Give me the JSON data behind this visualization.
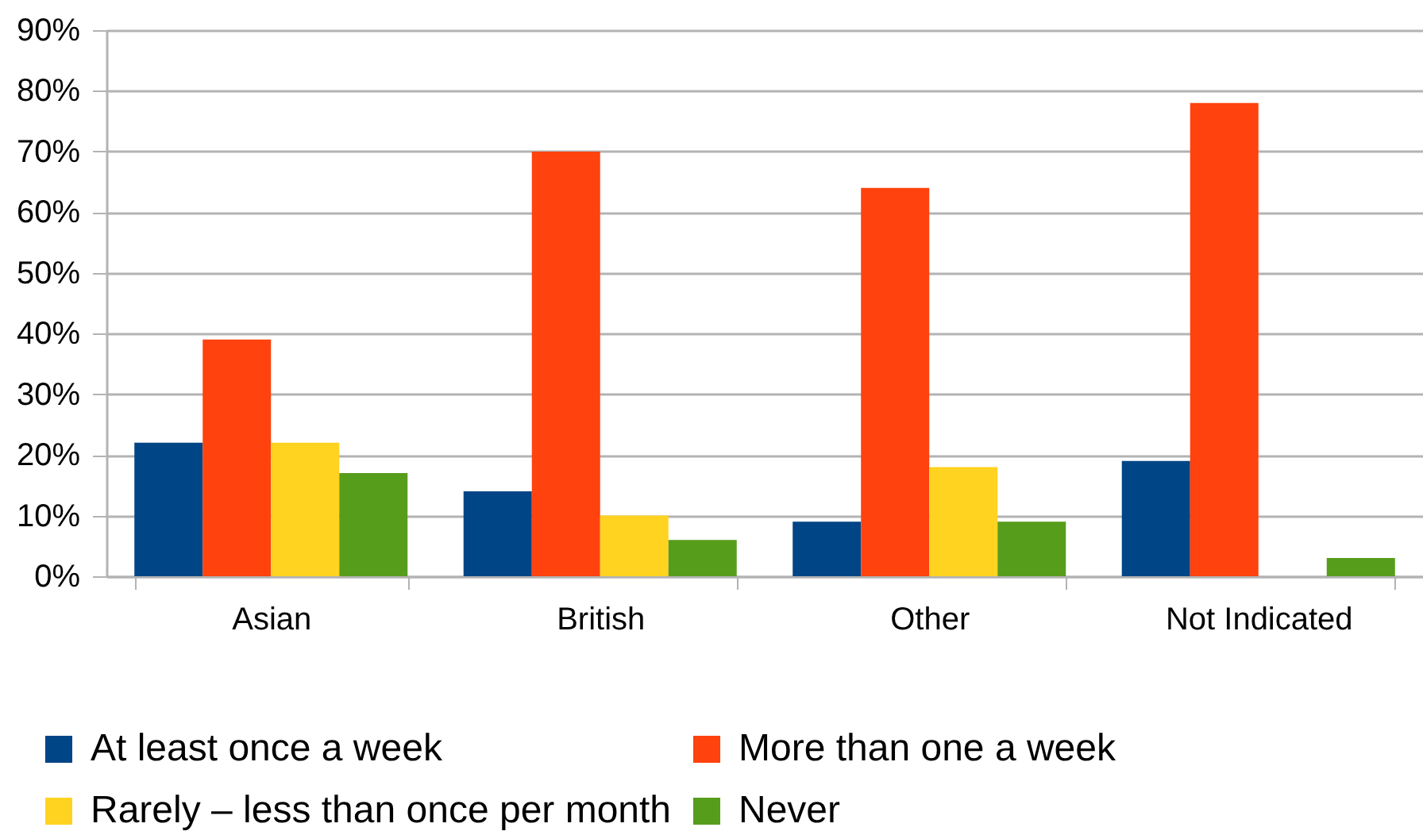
{
  "chart_data": {
    "type": "bar",
    "categories": [
      "Asian",
      "British",
      "Other",
      "Not Indicated"
    ],
    "series": [
      {
        "name": "At least once a week",
        "color": "#004586",
        "values": [
          22,
          14,
          9,
          19
        ]
      },
      {
        "name": "More than one a week",
        "color": "#ff420e",
        "values": [
          39,
          70,
          64,
          78
        ]
      },
      {
        "name": "Rarely – less than once per month",
        "color": "#ffd320",
        "values": [
          22,
          10,
          18,
          null
        ]
      },
      {
        "name": "Never",
        "color": "#579d1c",
        "values": [
          17,
          6,
          9,
          3
        ]
      }
    ],
    "ylim": [
      0,
      90
    ],
    "yticks": [
      {
        "value": 0,
        "label": "0%"
      },
      {
        "value": 10,
        "label": "10%"
      },
      {
        "value": 20,
        "label": "20%"
      },
      {
        "value": 30,
        "label": "30%"
      },
      {
        "value": 40,
        "label": "40%"
      },
      {
        "value": 50,
        "label": "50%"
      },
      {
        "value": 60,
        "label": "60%"
      },
      {
        "value": 70,
        "label": "70%"
      },
      {
        "value": 80,
        "label": "80%"
      },
      {
        "value": 90,
        "label": "90%"
      }
    ],
    "grid": "y",
    "legend": "bottom"
  }
}
